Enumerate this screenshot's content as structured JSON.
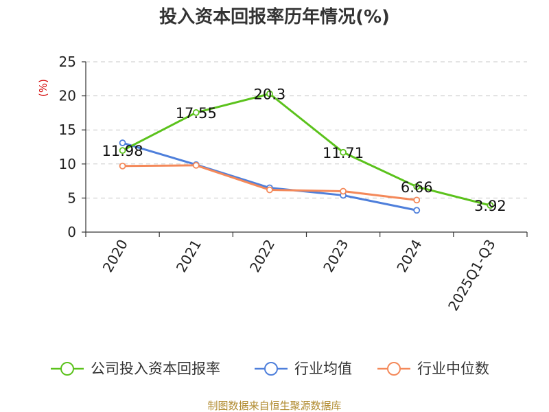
{
  "colors": {
    "company": "#5bc21c",
    "industry_avg": "#4e7fdb",
    "industry_median": "#f4895a",
    "unit": "#d40000",
    "source": "#b08a2e",
    "grid": "#c8c8c8"
  },
  "chart_data": {
    "type": "line",
    "title": "投入资本回报率历年情况(%)",
    "ylabel": "(%)",
    "ylim": [
      0,
      25
    ],
    "yticks": [
      0,
      5,
      10,
      15,
      20,
      25
    ],
    "categories": [
      "2020",
      "2021",
      "2022",
      "2023",
      "2024",
      "2025Q1-Q3"
    ],
    "series": [
      {
        "name": "公司投入资本回报率",
        "color_key": "company",
        "values": [
          11.98,
          17.55,
          20.3,
          11.71,
          6.66,
          3.92
        ],
        "labels": [
          "11.98",
          "17.55",
          "20.3",
          "11.71",
          "6.66",
          "3.92"
        ]
      },
      {
        "name": "行业均值",
        "color_key": "industry_avg",
        "values": [
          13.1,
          9.9,
          6.5,
          5.4,
          3.2,
          null
        ]
      },
      {
        "name": "行业中位数",
        "color_key": "industry_median",
        "values": [
          9.7,
          9.8,
          6.2,
          6.0,
          4.7,
          null
        ]
      }
    ],
    "legend": [
      "公司投入资本回报率",
      "行业均值",
      "行业中位数"
    ],
    "grid": true,
    "legend_position": "bottom"
  },
  "source": "制图数据来自恒生聚源数据库"
}
